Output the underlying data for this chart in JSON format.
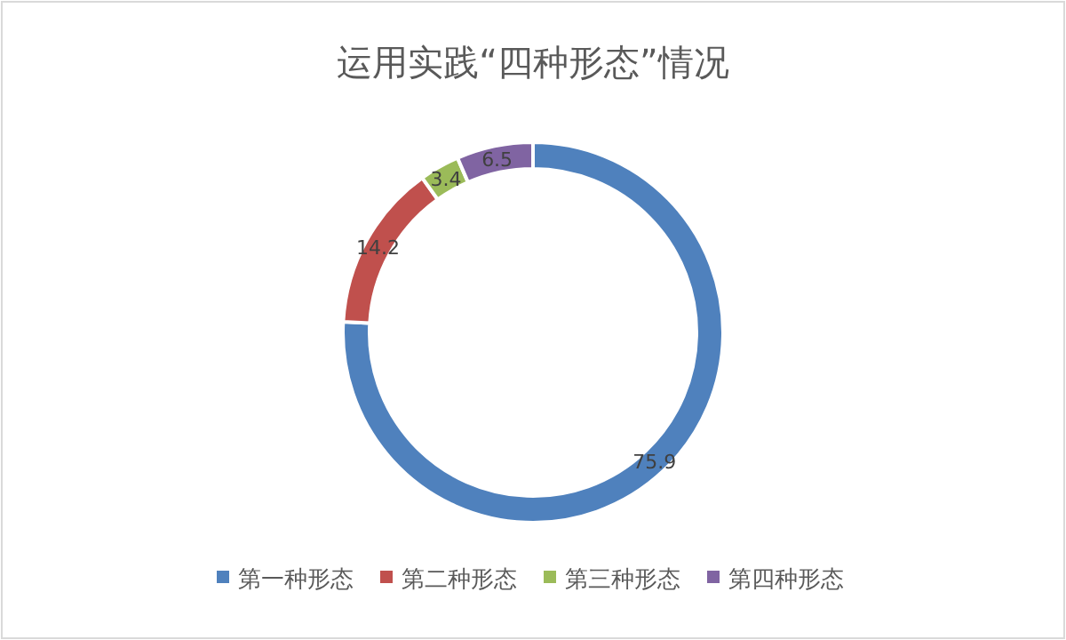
{
  "chart_data": {
    "type": "donut",
    "title": "运用实践“四种形态”情况",
    "categories": [
      "第一种形态",
      "第二种形态",
      "第三种形态",
      "第四种形态"
    ],
    "values": [
      75.9,
      14.2,
      3.4,
      6.5
    ],
    "colors": [
      "#4f81bd",
      "#c0504d",
      "#9bbb59",
      "#8064a2"
    ],
    "data_labels": true,
    "legend": "bottom"
  }
}
